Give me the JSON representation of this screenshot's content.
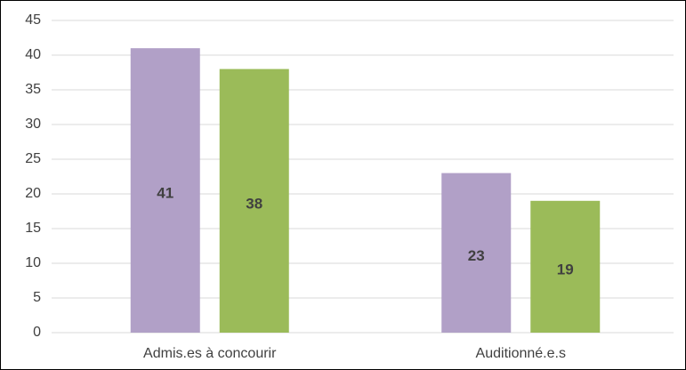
{
  "chart_data": {
    "type": "bar",
    "categories": [
      "Admis.es à concourir",
      "Auditionné.e.s"
    ],
    "series": [
      {
        "color": "#b1a0c7",
        "values": [
          41,
          23
        ]
      },
      {
        "color": "#9bbb59",
        "values": [
          38,
          19
        ]
      }
    ],
    "ylim": [
      0,
      45
    ],
    "yticks": [
      0,
      5,
      10,
      15,
      20,
      25,
      30,
      35,
      40,
      45
    ],
    "grid": true
  }
}
